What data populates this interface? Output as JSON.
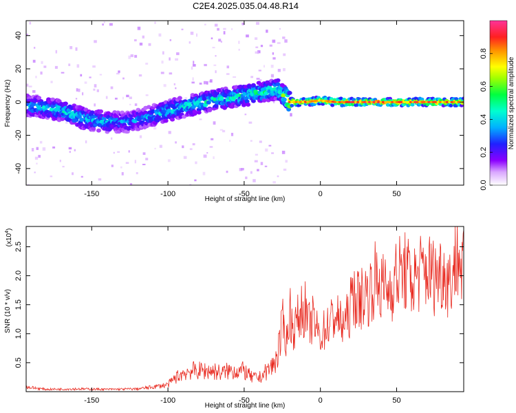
{
  "title": "C2E4.2025.035.04.48.R14",
  "colors": {
    "snr_line": "#e8281e",
    "axis": "#000000",
    "colormap": [
      "#ffffff",
      "#d9a6ff",
      "#8b00ff",
      "#2020ff",
      "#00b0ff",
      "#00ffd0",
      "#00ff40",
      "#a0ff00",
      "#ffff00",
      "#ff9000",
      "#ff2020",
      "#ff3399"
    ]
  },
  "chart_data": [
    {
      "type": "heatmap",
      "xlabel": "Height of straight line (km)",
      "ylabel": "Frequency (Hz)",
      "xlim": [
        -193,
        94
      ],
      "ylim": [
        -50,
        49
      ],
      "xticks": [
        -150,
        -100,
        -50,
        0,
        50
      ],
      "yticks": [
        -40,
        -20,
        0,
        20,
        40
      ],
      "xtick_labels": [
        "-150",
        "-100",
        "-50",
        "0",
        "50"
      ],
      "ytick_labels": [
        "-40",
        "-20",
        "0",
        "20",
        "40"
      ],
      "grid": false,
      "ridge": {
        "height_km": [
          -193,
          -170,
          -155,
          -140,
          -125,
          -110,
          -95,
          -80,
          -65,
          -50,
          -38,
          -28,
          -20,
          -10,
          0,
          10,
          20,
          40,
          60,
          80,
          94
        ],
        "frequency_hz": [
          -2,
          -5,
          -10,
          -12,
          -12,
          -8,
          -4,
          -1,
          2,
          4,
          6,
          8,
          0,
          0,
          1,
          0,
          0,
          0,
          0,
          0,
          0
        ],
        "normalized_amplitude": [
          0.45,
          0.5,
          0.5,
          0.45,
          0.4,
          0.45,
          0.5,
          0.55,
          0.55,
          0.55,
          0.6,
          0.55,
          0.9,
          0.9,
          0.9,
          0.9,
          0.95,
          0.95,
          0.95,
          0.95,
          0.9
        ]
      },
      "colorbar": {
        "label": "Normalized spectral amplitude",
        "range": [
          0,
          1
        ],
        "ticks": [
          0.0,
          0.2,
          0.4,
          0.6,
          0.8
        ],
        "tick_labels": [
          "0.0",
          "0.2",
          "0.4",
          "0.6",
          "0.8"
        ]
      }
    },
    {
      "type": "line",
      "xlabel": "Height of straight line (km)",
      "ylabel": "SNR (10 * v/v)",
      "y_multiplier_label": "(x10",
      "y_multiplier_exp": "4",
      "y_multiplier_close": ")",
      "xlim": [
        -193,
        94
      ],
      "ylim": [
        0,
        2.85
      ],
      "xticks": [
        -150,
        -100,
        -50,
        0,
        50
      ],
      "yticks": [
        0.5,
        1.0,
        1.5,
        2.0,
        2.5
      ],
      "xtick_labels": [
        "-150",
        "-100",
        "-50",
        "0",
        "50"
      ],
      "ytick_labels": [
        "0.5",
        "1.0",
        "1.5",
        "2.0",
        "2.5"
      ],
      "grid": false,
      "series": [
        {
          "x": [
            -193,
            -180,
            -160,
            -140,
            -120,
            -110,
            -100,
            -95,
            -90,
            -85,
            -80,
            -75,
            -70,
            -65,
            -60,
            -55,
            -50,
            -45,
            -40,
            -35,
            -30,
            -27,
            -25,
            -22,
            -20,
            -18,
            -15,
            -12,
            -10,
            -8,
            -5,
            -2,
            0,
            3,
            6,
            10,
            14,
            18,
            22,
            25,
            28,
            32,
            36,
            40,
            45,
            50,
            55,
            60,
            65,
            70,
            75,
            80,
            85,
            90,
            94
          ],
          "y": [
            0.1,
            0.05,
            0.06,
            0.05,
            0.06,
            0.1,
            0.15,
            0.3,
            0.4,
            0.45,
            0.45,
            0.45,
            0.45,
            0.4,
            0.45,
            0.45,
            0.45,
            0.3,
            0.3,
            0.45,
            0.6,
            1.0,
            1.3,
            0.9,
            1.5,
            1.1,
            1.3,
            1.5,
            1.5,
            1.2,
            1.3,
            1.1,
            1.0,
            1.15,
            1.25,
            1.4,
            1.2,
            1.35,
            1.8,
            1.65,
            1.75,
            1.8,
            2.05,
            1.9,
            1.85,
            2.1,
            2.2,
            2.0,
            2.15,
            2.2,
            2.1,
            2.2,
            2.0,
            2.5,
            2.2
          ]
        }
      ]
    }
  ]
}
